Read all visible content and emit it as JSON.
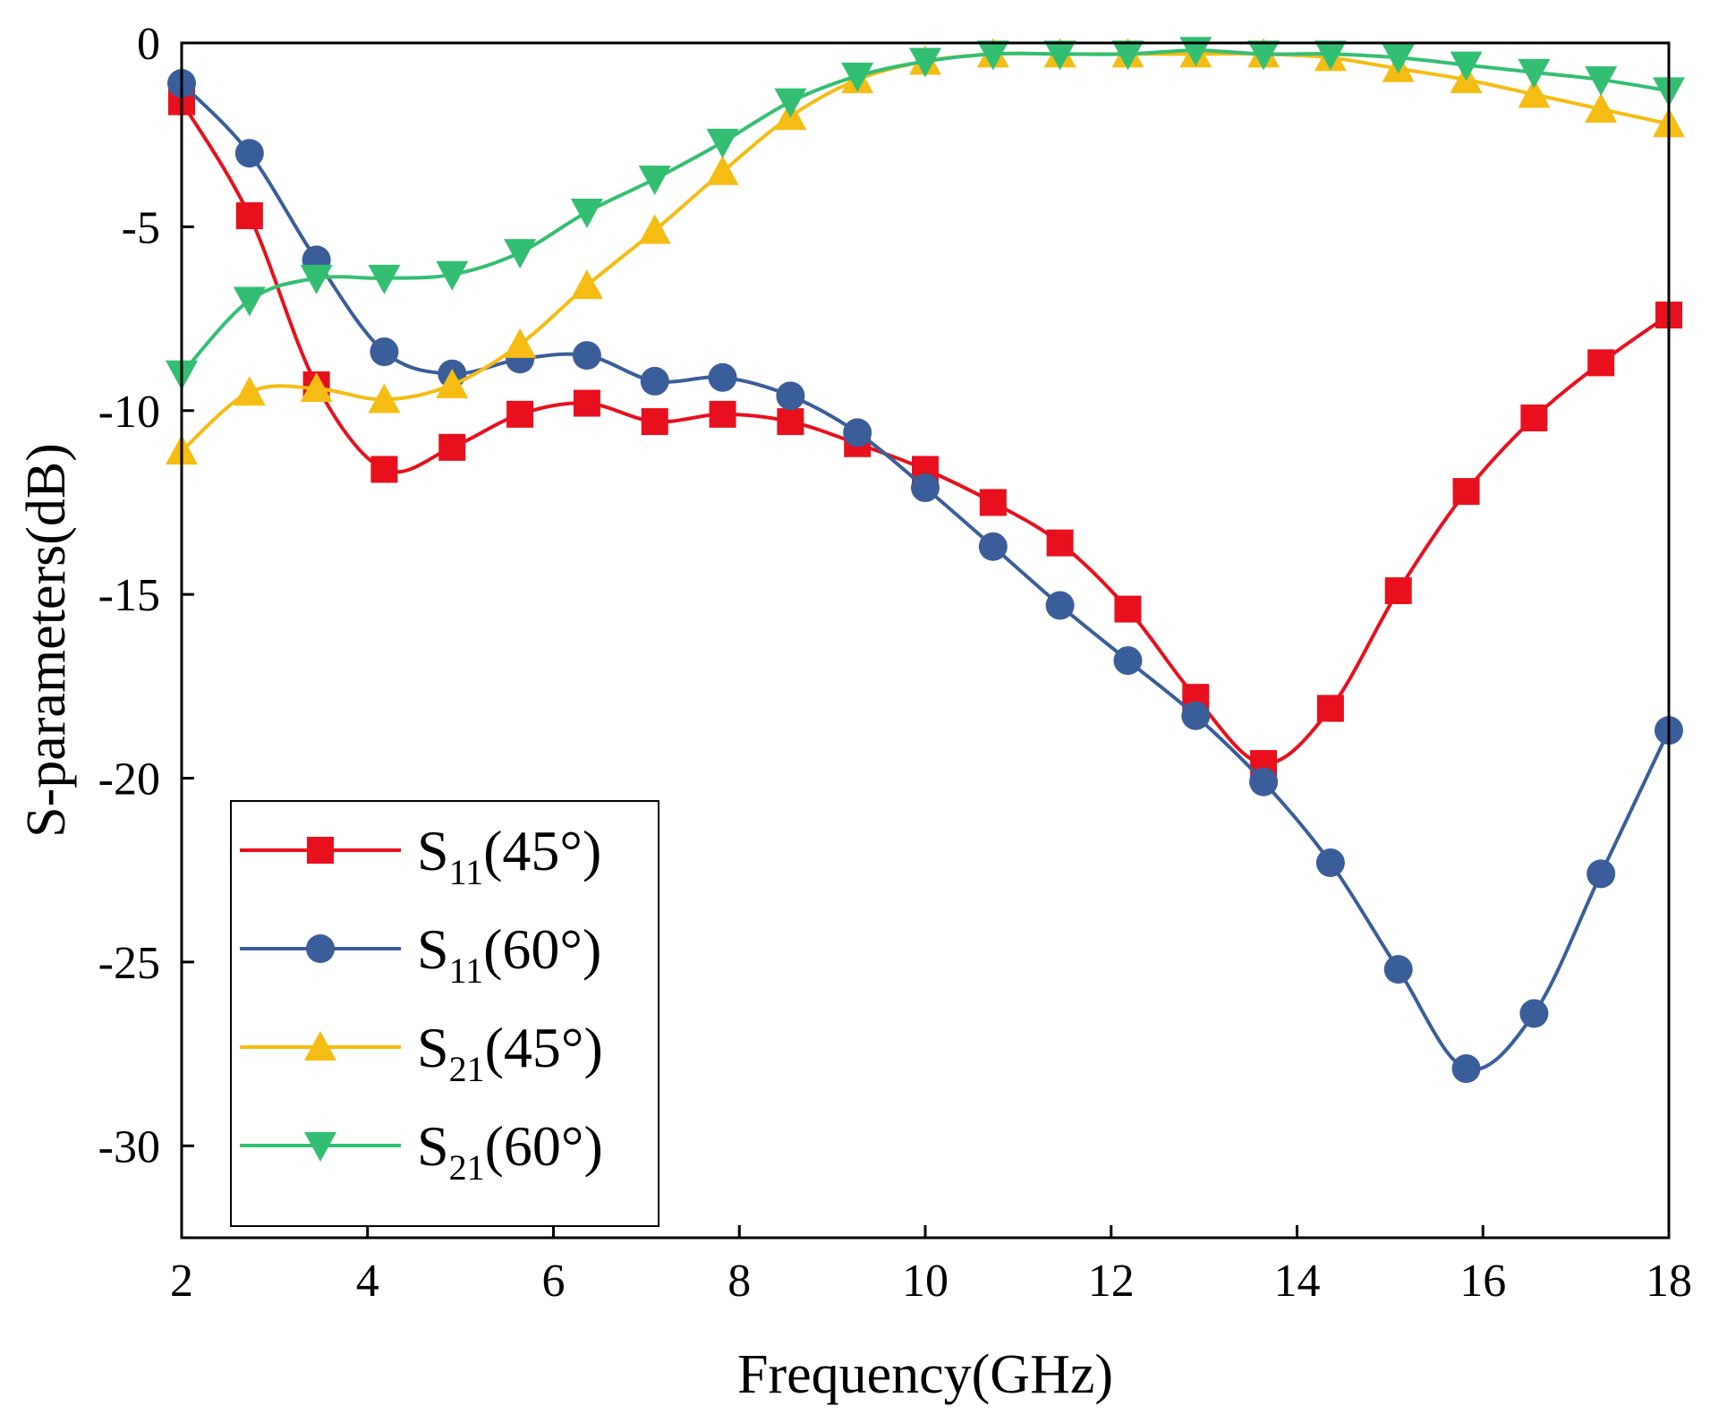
{
  "chart_data": {
    "type": "line",
    "title": "",
    "xlabel": "Frequency(GHz)",
    "ylabel": "S-parameters(dB)",
    "xlim": [
      2,
      18
    ],
    "ylim": [
      -32.5,
      0
    ],
    "xticks": [
      2,
      4,
      6,
      8,
      10,
      12,
      14,
      16,
      18
    ],
    "yticks": [
      0,
      -5,
      -10,
      -15,
      -20,
      -25,
      -30
    ],
    "grid": false,
    "legend_position": "bottom-left",
    "series": [
      {
        "name": "S11(45°)",
        "label_main": "S",
        "label_sub": "11",
        "label_tail": "(45°)",
        "color": "#e8101c",
        "marker": "square",
        "x": [
          2.0,
          2.73,
          3.45,
          4.18,
          4.91,
          5.64,
          6.36,
          7.09,
          7.82,
          8.55,
          9.27,
          10.0,
          10.73,
          11.45,
          12.18,
          12.91,
          13.64,
          14.36,
          15.09,
          15.82,
          16.55,
          17.27,
          18.0
        ],
        "y": [
          -1.6,
          -4.7,
          -9.3,
          -11.6,
          -11.0,
          -10.1,
          -9.8,
          -10.3,
          -10.1,
          -10.3,
          -10.9,
          -11.6,
          -12.5,
          -13.6,
          -15.4,
          -17.8,
          -19.6,
          -18.1,
          -14.9,
          -12.2,
          -10.2,
          -8.7,
          -7.4
        ]
      },
      {
        "name": "S11(60°)",
        "label_main": "S",
        "label_sub": "11",
        "label_tail": "(60°)",
        "color": "#3a5e9a",
        "marker": "circle",
        "x": [
          2.0,
          2.73,
          3.45,
          4.18,
          4.91,
          5.64,
          6.36,
          7.09,
          7.82,
          8.55,
          9.27,
          10.0,
          10.73,
          11.45,
          12.18,
          12.91,
          13.64,
          14.36,
          15.09,
          15.82,
          16.55,
          17.27,
          18.0
        ],
        "y": [
          -1.1,
          -3.0,
          -5.9,
          -8.4,
          -9.0,
          -8.6,
          -8.5,
          -9.2,
          -9.1,
          -9.6,
          -10.6,
          -12.1,
          -13.7,
          -15.3,
          -16.8,
          -18.3,
          -20.1,
          -22.3,
          -25.2,
          -27.9,
          -26.4,
          -22.6,
          -18.7
        ]
      },
      {
        "name": "S21(45°)",
        "label_main": "S",
        "label_sub": "21",
        "label_tail": "(45°)",
        "color": "#f5bc13",
        "marker": "triangle-up",
        "x": [
          2.0,
          2.73,
          3.45,
          4.18,
          4.91,
          5.64,
          6.36,
          7.09,
          7.82,
          8.55,
          9.27,
          10.0,
          10.73,
          11.45,
          12.18,
          12.91,
          13.64,
          14.36,
          15.09,
          15.82,
          16.55,
          17.27,
          18.0
        ],
        "y": [
          -11.1,
          -9.5,
          -9.4,
          -9.7,
          -9.3,
          -8.2,
          -6.6,
          -5.1,
          -3.5,
          -2.0,
          -1.0,
          -0.5,
          -0.3,
          -0.3,
          -0.3,
          -0.3,
          -0.3,
          -0.4,
          -0.7,
          -1.0,
          -1.4,
          -1.8,
          -2.2
        ]
      },
      {
        "name": "S21(60°)",
        "label_main": "S",
        "label_sub": "21",
        "label_tail": "(60°)",
        "color": "#33bf72",
        "marker": "triangle-down",
        "x": [
          2.0,
          2.73,
          3.45,
          4.18,
          4.91,
          5.64,
          6.36,
          7.09,
          7.82,
          8.55,
          9.27,
          10.0,
          10.73,
          11.45,
          12.18,
          12.91,
          13.64,
          14.36,
          15.09,
          15.82,
          16.55,
          17.27,
          18.0
        ],
        "y": [
          -9.0,
          -7.0,
          -6.4,
          -6.4,
          -6.3,
          -5.7,
          -4.6,
          -3.7,
          -2.7,
          -1.6,
          -0.9,
          -0.5,
          -0.3,
          -0.3,
          -0.3,
          -0.2,
          -0.3,
          -0.3,
          -0.4,
          -0.6,
          -0.8,
          -1.0,
          -1.3
        ]
      }
    ]
  }
}
